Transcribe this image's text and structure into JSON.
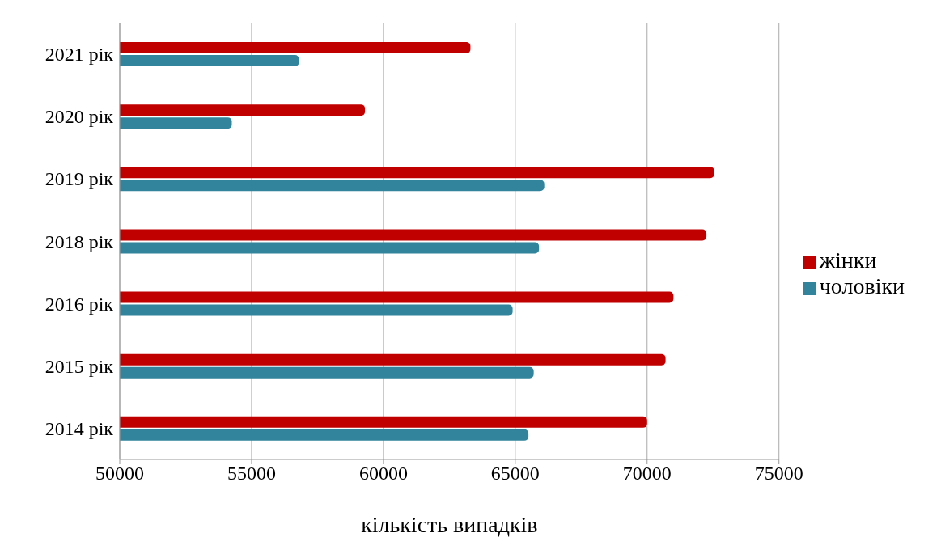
{
  "chart_data": {
    "type": "bar",
    "orientation": "horizontal",
    "xlabel": "кількість випадків",
    "categories": [
      "2021 рік",
      "2020 рік",
      "2019 рік",
      "2018 рік",
      "2016 рік",
      "2015 рік",
      "2014 рік"
    ],
    "series": [
      {
        "name": "жінки",
        "color": "#c00000",
        "values": [
          63300,
          59300,
          72550,
          72250,
          71000,
          70700,
          70000
        ]
      },
      {
        "name": "чоловіки",
        "color": "#31849b",
        "values": [
          56800,
          54250,
          66100,
          65900,
          64900,
          65700,
          65500
        ]
      }
    ],
    "xlim": [
      50000,
      75000
    ],
    "xticks": [
      50000,
      55000,
      60000,
      65000,
      70000,
      75000
    ],
    "grid": "x",
    "legend": "right"
  }
}
